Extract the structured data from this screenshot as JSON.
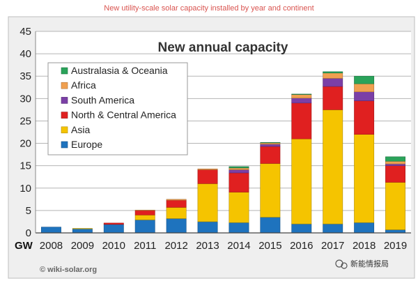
{
  "page_heading": "New utility-scale solar capacity installed by year and continent",
  "chart_data": {
    "type": "bar",
    "stacked": true,
    "title": "New annual capacity",
    "ylabel": "GW",
    "xlabel": "",
    "ylim": [
      0,
      45
    ],
    "yticks": [
      0,
      5,
      10,
      15,
      20,
      25,
      30,
      35,
      40,
      45
    ],
    "grid": true,
    "legend_position": "top-left",
    "categories": [
      "2008",
      "2009",
      "2010",
      "2011",
      "2012",
      "2013",
      "2014",
      "2015",
      "2016",
      "2017",
      "2018",
      "2019"
    ],
    "series": [
      {
        "name": "Europe",
        "color": "#1e73be",
        "values": [
          1.3,
          0.9,
          1.9,
          2.9,
          3.2,
          2.5,
          2.3,
          3.5,
          2.0,
          2.0,
          2.3,
          0.7
        ]
      },
      {
        "name": "Asia",
        "color": "#f5c400",
        "values": [
          0,
          0.1,
          0,
          1.1,
          2.5,
          8.5,
          6.8,
          12.0,
          19.0,
          25.5,
          19.7,
          10.6
        ]
      },
      {
        "name": "North & Central America",
        "color": "#e02020",
        "values": [
          0,
          0,
          0.3,
          1.0,
          1.6,
          3.1,
          4.3,
          3.8,
          8.0,
          5.2,
          7.5,
          3.7
        ]
      },
      {
        "name": "South America",
        "color": "#7b3fa6",
        "values": [
          0,
          0,
          0,
          0,
          0,
          0,
          0.7,
          0.5,
          1.1,
          1.8,
          2.0,
          0.4
        ]
      },
      {
        "name": "Africa",
        "color": "#f0a050",
        "values": [
          0,
          0,
          0,
          0.1,
          0.2,
          0.2,
          0.4,
          0.3,
          0.8,
          1.2,
          1.8,
          0.6
        ]
      },
      {
        "name": "Australasia & Oceania",
        "color": "#2aa35a",
        "values": [
          0,
          0,
          0,
          0,
          0,
          0,
          0.3,
          0.1,
          0.1,
          0.3,
          1.7,
          1.0
        ]
      }
    ],
    "watermark": "© wiki-solar.org",
    "brand_badge": "新能情报局"
  }
}
